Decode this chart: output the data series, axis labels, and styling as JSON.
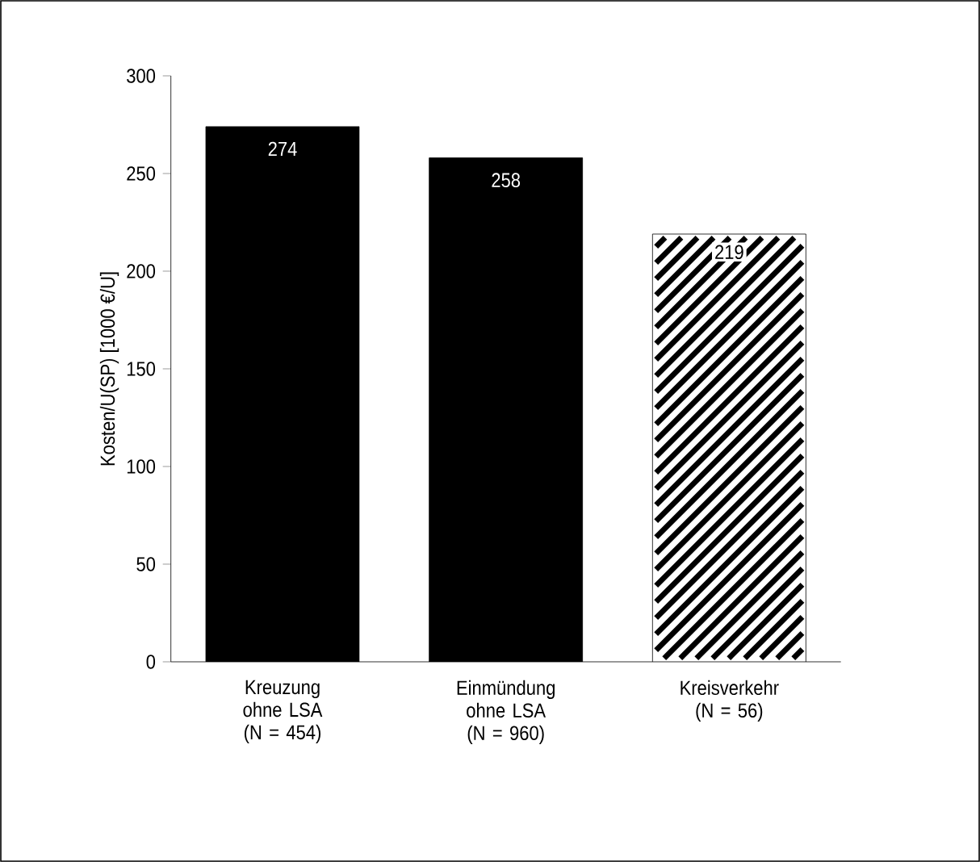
{
  "chart_data": {
    "type": "bar",
    "ylabel": "Kosten/U(SP) [1000 €/U]",
    "categories": [
      "Kreuzung ohne LSA (N = 454)",
      "Einmündung ohne LSA (N = 960)",
      "Kreisverkehr (N = 56)"
    ],
    "values": [
      274,
      258,
      219
    ],
    "colors": [
      "#000000",
      "#000000",
      "#ffffff"
    ],
    "ylim": [
      0,
      300
    ],
    "yticks": [
      0,
      50,
      100,
      150,
      200,
      250,
      300
    ],
    "data_labels": true
  }
}
